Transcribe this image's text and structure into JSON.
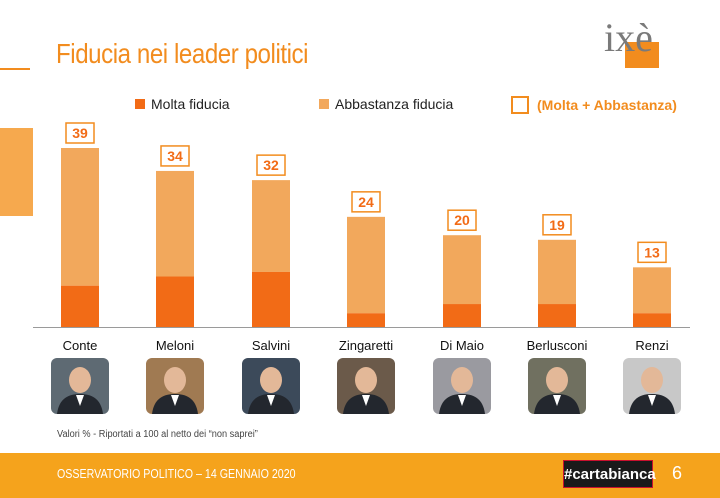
{
  "header": {
    "title": "Fiducia nei leader politici",
    "logo_text": "ixè"
  },
  "legend": {
    "molta": "Molta fiducia",
    "abbastanza": "Abbastanza fiducia",
    "total": "(Molta + Abbastanza)"
  },
  "colors": {
    "molta": "#f26b16",
    "abbastanza": "#f2a85c",
    "accent": "#f28c1e",
    "footer": "#f5a31c"
  },
  "chart_data": {
    "type": "bar",
    "stacked": true,
    "categories": [
      "Conte",
      "Meloni",
      "Salvini",
      "Zingaretti",
      "Di Maio",
      "Berlusconi",
      "Renzi"
    ],
    "series": [
      {
        "name": "Molta fiducia",
        "values": [
          9,
          11,
          12,
          3,
          5,
          5,
          3
        ]
      },
      {
        "name": "Abbastanza fiducia",
        "values": [
          30,
          23,
          20,
          21,
          15,
          14,
          10
        ]
      }
    ],
    "totals": [
      "39",
      "34",
      "32",
      "24",
      "20",
      "19",
      "13"
    ],
    "totals_label": "(Molta + Abbastanza)",
    "ylim": [
      0,
      40
    ],
    "grid": false,
    "legend_position": "top"
  },
  "photos": [
    {
      "name": "Conte",
      "icon": "portrait-icon"
    },
    {
      "name": "Meloni",
      "icon": "portrait-icon"
    },
    {
      "name": "Salvini",
      "icon": "portrait-icon"
    },
    {
      "name": "Zingaretti",
      "icon": "portrait-icon"
    },
    {
      "name": "Di Maio",
      "icon": "portrait-icon"
    },
    {
      "name": "Berlusconi",
      "icon": "portrait-icon"
    },
    {
      "name": "Renzi",
      "icon": "portrait-icon"
    }
  ],
  "note": "Valori % - Riportati a 100 al netto dei “non saprei”",
  "footer": {
    "text": "OSSERVATORIO POLITICO – 14 GENNAIO 2020",
    "hashtag": "#cartabianca",
    "page": "6"
  }
}
